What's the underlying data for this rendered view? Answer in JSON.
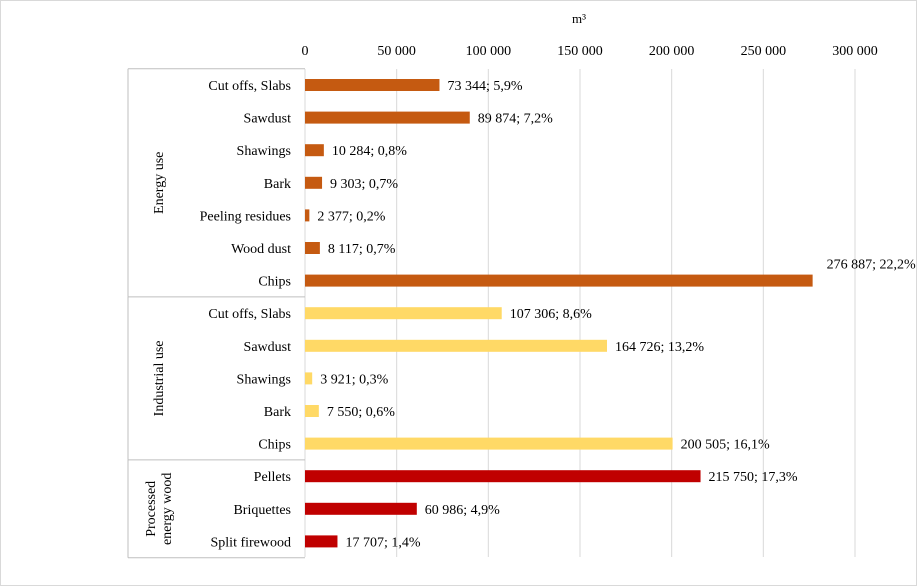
{
  "chart_data": {
    "type": "bar",
    "orientation": "horizontal",
    "unit": "m³",
    "xlim": [
      0,
      300000
    ],
    "xticks": [
      0,
      50000,
      100000,
      150000,
      200000,
      250000,
      300000
    ],
    "xtick_labels": [
      "0",
      "50 000",
      "100 000",
      "150 000",
      "200 000",
      "250 000",
      "300 000"
    ],
    "x_axis_position": "top",
    "grid": "vertical",
    "legend": "none",
    "groups": [
      {
        "label": "Energy use",
        "color": "#C55A11",
        "items": [
          {
            "category": "Cut offs, Slabs",
            "value": 73344,
            "label": "73 344; 5,9%"
          },
          {
            "category": "Sawdust",
            "value": 89874,
            "label": "89 874; 7,2%"
          },
          {
            "category": "Shawings",
            "value": 10284,
            "label": "10 284; 0,8%"
          },
          {
            "category": "Bark",
            "value": 9303,
            "label": "9 303; 0,7%"
          },
          {
            "category": "Peeling residues",
            "value": 2377,
            "label": "2 377; 0,2%"
          },
          {
            "category": "Wood dust",
            "value": 8117,
            "label": "8 117; 0,7%"
          },
          {
            "category": "Chips",
            "value": 276887,
            "label": "276 887; 22,2%"
          }
        ]
      },
      {
        "label": "Industrial use",
        "color": "#FFD966",
        "items": [
          {
            "category": "Cut offs, Slabs",
            "value": 107306,
            "label": "107 306; 8,6%"
          },
          {
            "category": "Sawdust",
            "value": 164726,
            "label": "164 726; 13,2%"
          },
          {
            "category": "Shawings",
            "value": 3921,
            "label": "3 921; 0,3%"
          },
          {
            "category": "Bark",
            "value": 7550,
            "label": "7 550; 0,6%"
          },
          {
            "category": "Chips",
            "value": 200505,
            "label": "200 505; 16,1%"
          }
        ]
      },
      {
        "label": "Processed energy wood",
        "label_lines": [
          "Processed",
          "energy wood"
        ],
        "color": "#C00000",
        "items": [
          {
            "category": "Pellets",
            "value": 215750,
            "label": "215 750; 17,3%"
          },
          {
            "category": "Briquettes",
            "value": 60986,
            "label": "60 986; 4,9%"
          },
          {
            "category": "Split firewood",
            "value": 17707,
            "label": "17 707; 1,4%"
          }
        ]
      }
    ]
  }
}
